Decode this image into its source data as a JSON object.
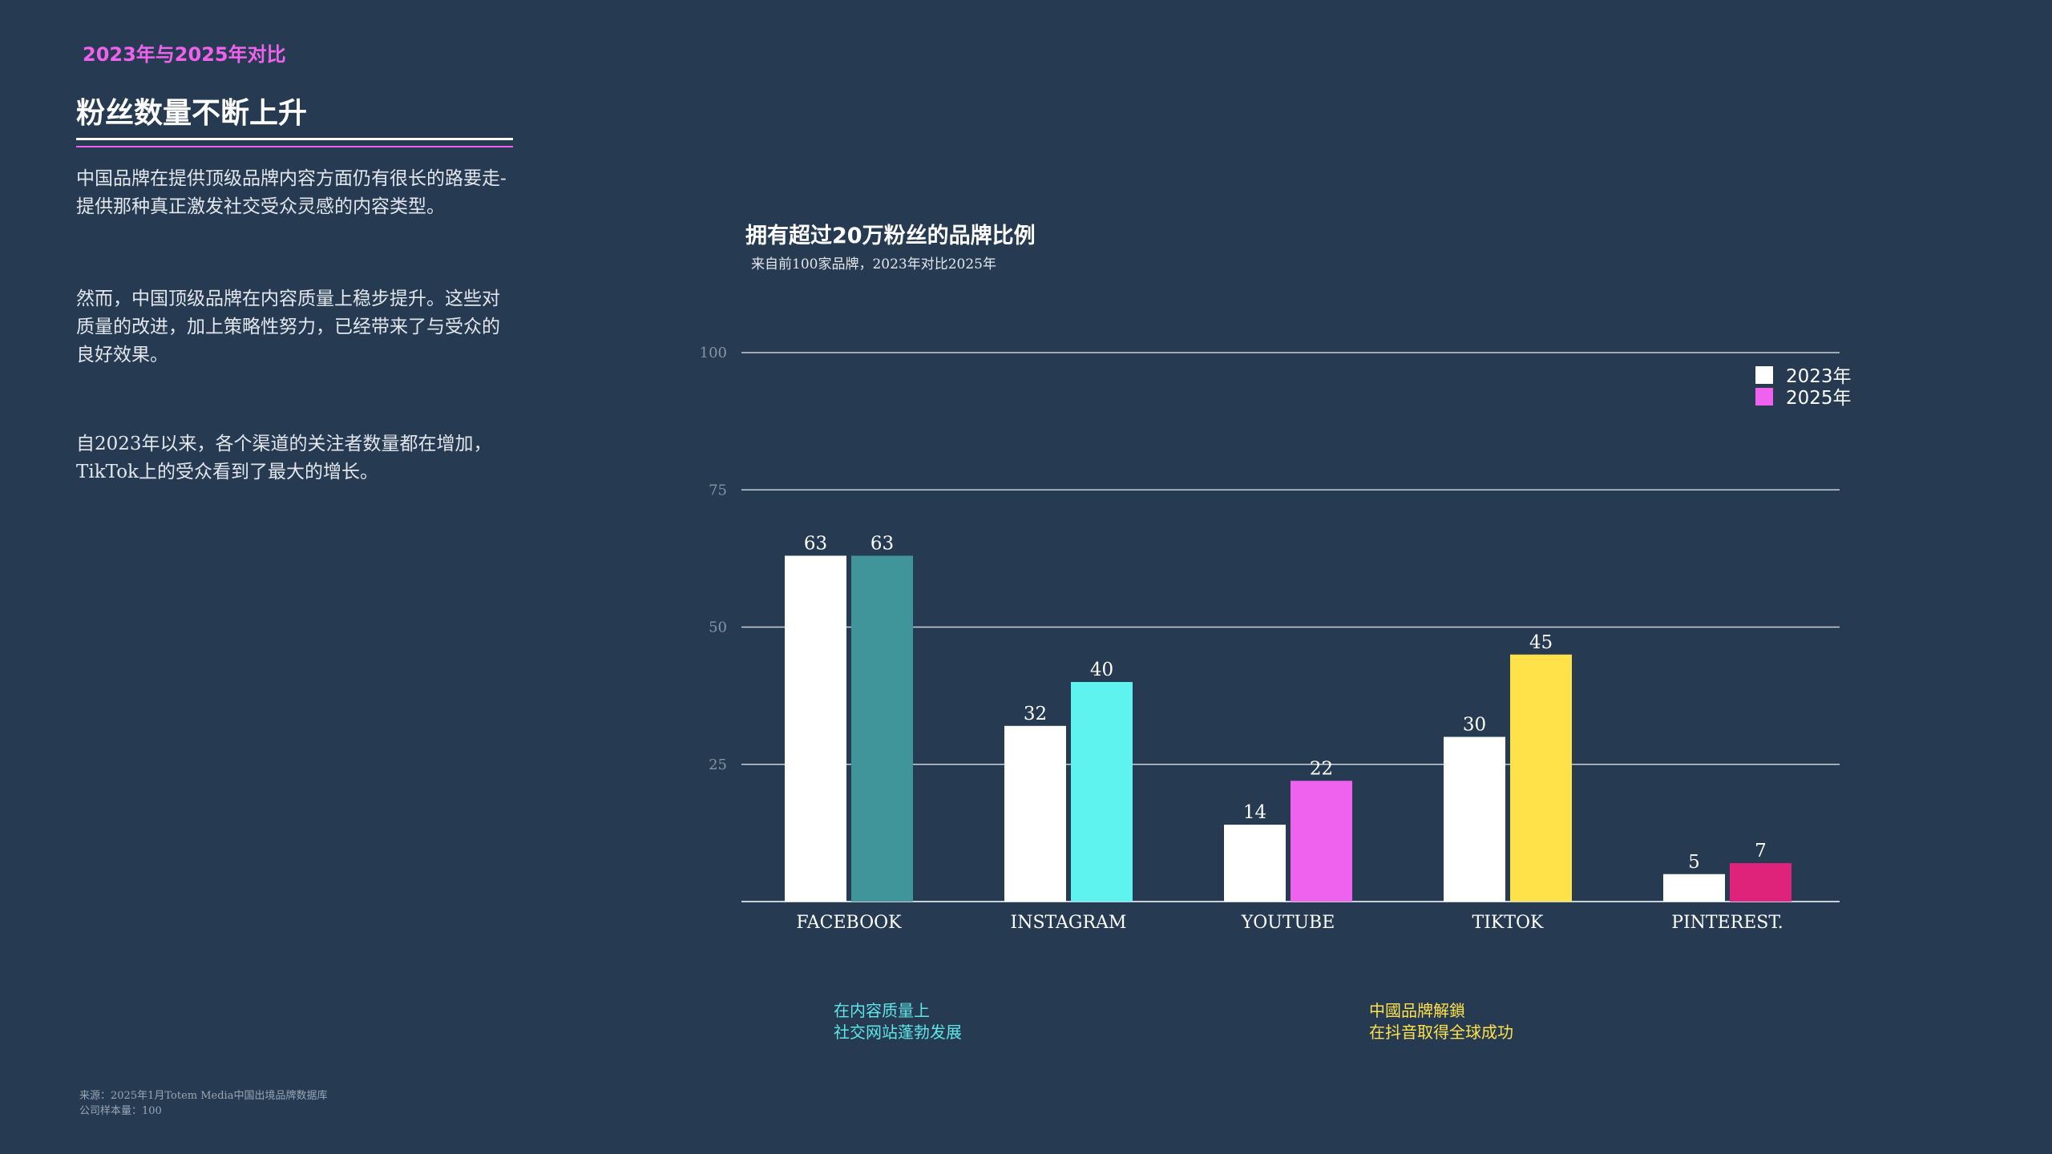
{
  "header": {
    "eyebrow": "2023年与2025年对比",
    "headline": "粉丝数量不断上升"
  },
  "body": {
    "paragraph_1": "中国品牌在提供顶级品牌内容方面仍有很长的路要走-提供那种真正激发社交受众灵感的内容类型。",
    "paragraph_2": "然而，中国顶级品牌在内容质量上稳步提升。这些对质量的改进，加上策略性努力，已经带来了与受众的良好效果。",
    "paragraph_3": "自2023年以来，各个渠道的关注者数量都在增加，TikTok上的受众看到了最大的增长。"
  },
  "footer": {
    "source_line_1": "来源：2025年1月Totem Media中国出境品牌数据库",
    "source_line_2": "公司样本量：100"
  },
  "annotations": {
    "cyan_line_1": "在内容质量上",
    "cyan_line_2": "社交网站蓬勃发展",
    "yellow_line_1": "中國品牌解鎖",
    "yellow_line_2": "在抖音取得全球成功"
  },
  "colors": {
    "background": "#263a52",
    "accent_pink": "#ef62ee",
    "bar_2023": "#ffffff",
    "facebook_2025": "#3f9599",
    "instagram_2025": "#5ef3ef",
    "youtube_2025": "#ef62ee",
    "tiktok_2025": "#ffe24a",
    "pinterest_2025": "#e0237a",
    "gridline": "#c9d0d8",
    "axis_tick": "#8894a3"
  },
  "chart_data": {
    "type": "bar",
    "title": "拥有超过20万粉丝的品牌比例",
    "subtitle": "来自前100家品牌，2023年对比2025年",
    "categories": [
      "FACEBOOK",
      "INSTAGRAM",
      "YOUTUBE",
      "TIKTOK",
      "PINTEREST."
    ],
    "series": [
      {
        "name": "2023年",
        "values": [
          63,
          32,
          14,
          30,
          5
        ],
        "color": "#ffffff"
      },
      {
        "name": "2025年",
        "values": [
          63,
          40,
          22,
          45,
          7
        ],
        "colors": [
          "#3f9599",
          "#5ef3ef",
          "#ef62ee",
          "#ffe24a",
          "#e0237a"
        ],
        "legend_color": "#ef62ee"
      }
    ],
    "ylim": [
      0,
      100
    ],
    "yticks": [
      25,
      50,
      75,
      100
    ],
    "grid": true,
    "legend_position": "top-right",
    "data_labels": true,
    "xlabel": "",
    "ylabel": ""
  }
}
